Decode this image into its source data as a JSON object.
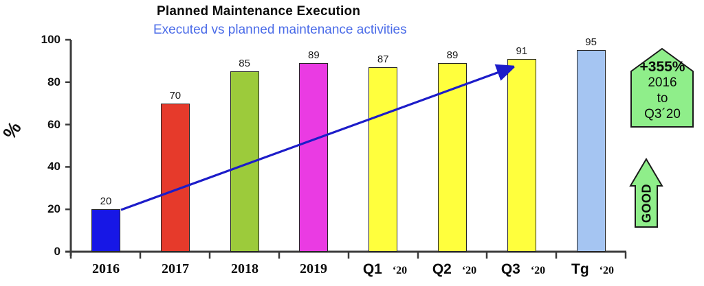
{
  "header": {
    "title": "Planned Maintenance Execution",
    "subtitle": "Executed vs planned maintenance activities",
    "subtitle_color": "#4a6be8"
  },
  "chart_data": {
    "type": "bar",
    "title": "Planned Maintenance Execution",
    "subtitle": "Executed vs planned maintenance activities",
    "ylabel": "%",
    "ylim": [
      0,
      100
    ],
    "yticks": [
      "100",
      "80",
      "60",
      "40",
      "20",
      "0"
    ],
    "grid": false,
    "legend": "none",
    "categories": [
      {
        "main": "2016",
        "suffix": ""
      },
      {
        "main": "2017",
        "suffix": ""
      },
      {
        "main": "2018",
        "suffix": ""
      },
      {
        "main": "2019",
        "suffix": ""
      },
      {
        "main": "Q1",
        "suffix": "‘20"
      },
      {
        "main": "Q2",
        "suffix": "‘20"
      },
      {
        "main": "Q3",
        "suffix": "‘20"
      },
      {
        "main": "Tg",
        "suffix": "‘20"
      }
    ],
    "values": [
      20,
      70,
      85,
      89,
      87,
      89,
      91,
      95
    ],
    "bar_colors": [
      "#1717e6",
      "#e63a2b",
      "#9ccb3b",
      "#ea3be3",
      "#ffff3d",
      "#ffff3d",
      "#ffff3d",
      "#a5c5f2"
    ],
    "trend_arrow": {
      "from": "2016 (20)",
      "to": "Q3 ‘20 (91)",
      "color": "#1c1cc9"
    }
  },
  "callouts": {
    "change_badge": {
      "line1": "+355%",
      "line2": "2016",
      "line3": "to",
      "line4": "Q3´20",
      "fill_color": "#8fee8a"
    },
    "good_arrow": {
      "label": "GOOD",
      "fill_color": "#8fee8a"
    }
  }
}
